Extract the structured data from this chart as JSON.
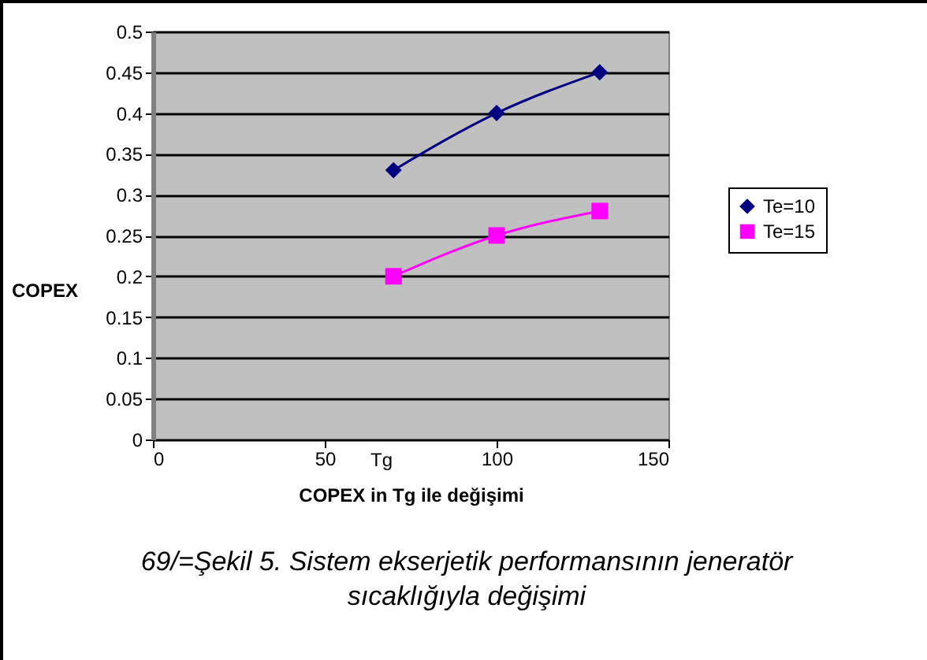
{
  "chart_data": {
    "type": "line",
    "xlabel": "COPEX in Tg ile değişimi",
    "ylabel": "COPEX",
    "x": [
      70,
      100,
      130
    ],
    "series": [
      {
        "name": "Te=10",
        "color": "#000080",
        "marker": "diamond",
        "values": [
          0.33,
          0.4,
          0.45
        ]
      },
      {
        "name": "Te=15",
        "color": "#ff00ff",
        "marker": "square",
        "values": [
          0.2,
          0.25,
          0.28
        ]
      }
    ],
    "xlim": [
      0,
      150
    ],
    "xticks": [
      0,
      50,
      100,
      150
    ],
    "ylim": [
      0,
      0.5
    ],
    "yticks": [
      0,
      0.05,
      0.1,
      0.15,
      0.2,
      0.25,
      0.3,
      0.35,
      0.4,
      0.45,
      0.5
    ],
    "grid": "y",
    "legend": "right",
    "line_style": "solid",
    "annotations": [
      "Tg",
      "69/=Şekil 5.  Sistem ekserjetik performansının jeneratör sıcaklığıyla değişimi"
    ]
  }
}
